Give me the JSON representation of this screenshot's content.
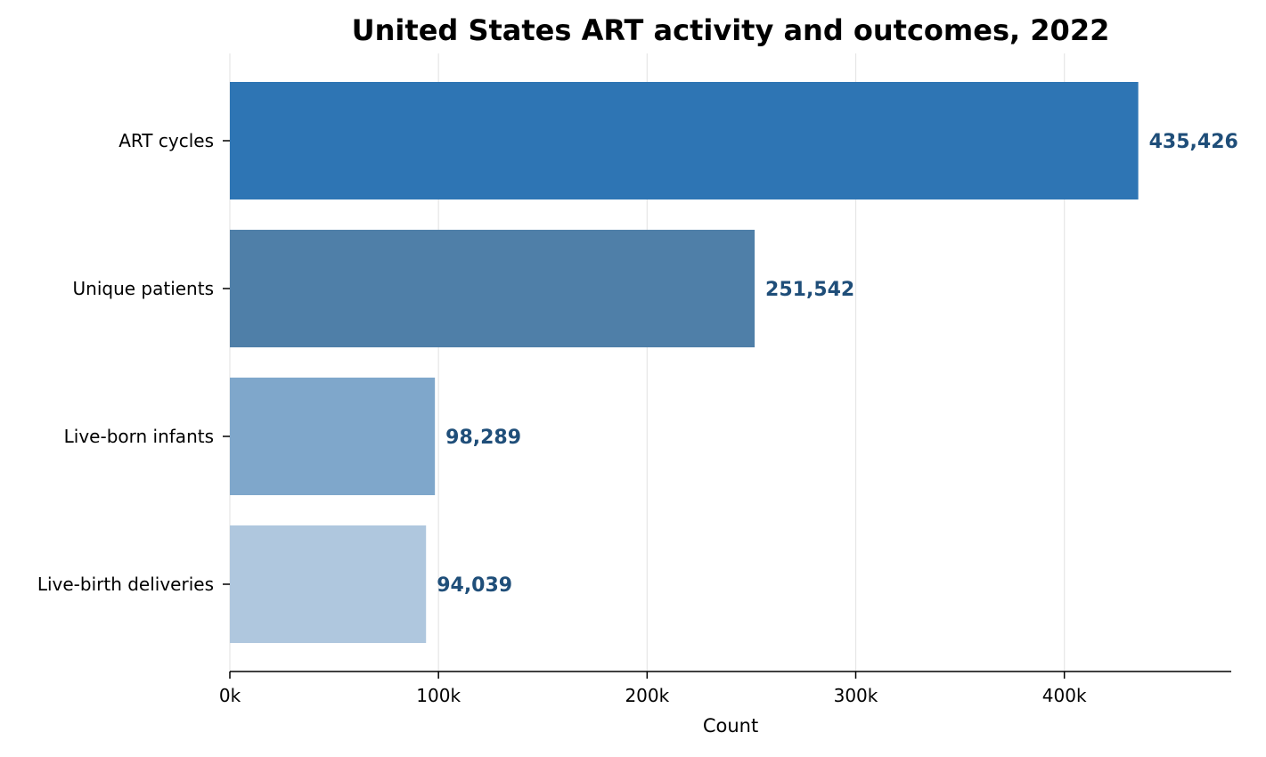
{
  "chart_data": {
    "type": "bar",
    "orientation": "horizontal",
    "title": "United States ART activity and outcomes, 2022",
    "xlabel": "Count",
    "ylabel": "",
    "categories": [
      "ART cycles",
      "Unique patients",
      "Live-born infants",
      "Live-birth deliveries"
    ],
    "values": [
      435426,
      251542,
      98289,
      94039
    ],
    "value_labels": [
      "435,426",
      "251,542",
      "98,289",
      "94,039"
    ],
    "bar_colors": [
      "#2e75b4",
      "#4f7fa8",
      "#7fa7cb",
      "#afc7de"
    ],
    "value_label_color": "#1f4e79",
    "xlim": [
      0,
      480000
    ],
    "xticks": [
      0,
      100000,
      200000,
      300000,
      400000
    ],
    "xtick_labels": [
      "0k",
      "100k",
      "200k",
      "300k",
      "400k"
    ],
    "grid": "vertical",
    "legend": "none"
  }
}
